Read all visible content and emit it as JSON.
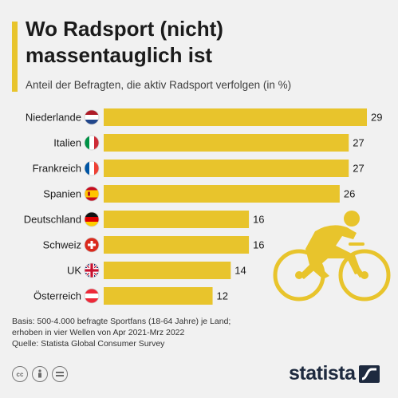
{
  "title": "Wo Radsport (nicht) massentauglich ist",
  "subtitle": "Anteil der Befragten, die aktiv Radsport verfolgen (in %)",
  "chart_data": {
    "type": "bar",
    "orientation": "horizontal",
    "categories": [
      "Niederlande",
      "Italien",
      "Frankreich",
      "Spanien",
      "Deutschland",
      "Schweiz",
      "UK",
      "Österreich"
    ],
    "values": [
      29,
      27,
      27,
      26,
      16,
      16,
      14,
      12
    ],
    "flags": [
      "nl",
      "it",
      "fr",
      "es",
      "de",
      "ch",
      "uk",
      "at"
    ],
    "bar_color": "#e8c42c",
    "value_labels": true
  },
  "footer": {
    "line1": "Basis: 500-4.000 befragte Sportfans (18-64 Jahre) je Land;",
    "line2": "erhoben in vier Wellen von Apr 2021-Mrz 2022",
    "line3": "Quelle: Statista Global Consumer Survey"
  },
  "license_icons": [
    "cc-icon",
    "by-icon",
    "nd-icon"
  ],
  "logo": {
    "text": "statista"
  }
}
